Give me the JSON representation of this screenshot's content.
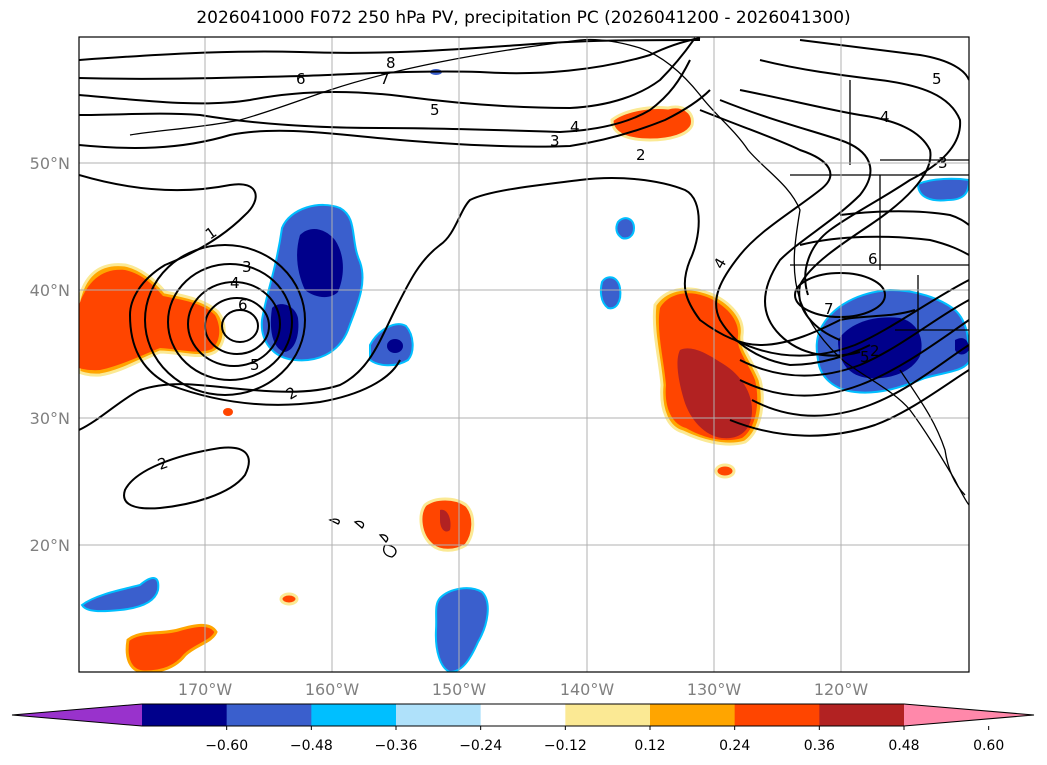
{
  "title": "2026041000 F072 250 hPa PV, precipitation PC (2026041200 - 2026041300)",
  "lat_labels": [
    "50°N",
    "40°N",
    "30°N",
    "20°N"
  ],
  "lon_labels": [
    "170°W",
    "160°W",
    "150°W",
    "140°W",
    "130°W",
    "120°W"
  ],
  "contour_labels": [
    "1",
    "2",
    "2",
    "2",
    "3",
    "4",
    "5",
    "6",
    "3",
    "4",
    "5",
    "6",
    "7",
    "8",
    "2",
    "3",
    "4",
    "5",
    "6",
    "7",
    "3",
    "4",
    "5",
    "5"
  ],
  "colorbar": {
    "colors": [
      "#9932cc",
      "#00008b",
      "#3a5fcd",
      "#00bfff",
      "#afe1fa",
      "#ffffff",
      "#fbe994",
      "#ffa500",
      "#ff4500",
      "#b22222",
      "#ff88aa"
    ],
    "tick_labels": [
      "−0.60",
      "−0.48",
      "−0.36",
      "−0.24",
      "−0.12",
      "0.12",
      "0.24",
      "0.36",
      "0.48",
      "0.60"
    ]
  },
  "colors": {
    "positive_high": "#b22222",
    "positive_mid": "#ff4500",
    "positive_low": "#ffa500",
    "negative_high": "#00008b",
    "negative_mid": "#3a5fcd",
    "grid": "#b0b0b0"
  }
}
